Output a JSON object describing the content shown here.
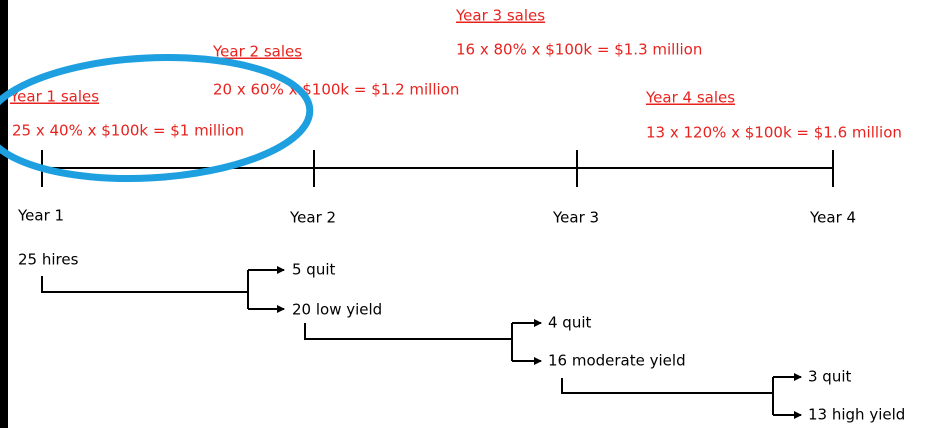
{
  "sales": [
    {
      "label": "Year 1 sales",
      "formula": "25 x 40% x $100k = $1 million"
    },
    {
      "label": "Year 2 sales",
      "formula": "20 x 60% x $100k = $1.2 million"
    },
    {
      "label": "Year 3 sales",
      "formula": "16 x 80% x $100k = $1.3 million"
    },
    {
      "label": "Year 4 sales",
      "formula": "13 x 120% x $100k = $1.6 million"
    }
  ],
  "timeline": [
    "Year 1",
    "Year 2",
    "Year 3",
    "Year 4"
  ],
  "flow": {
    "start": "25 hires",
    "steps": [
      {
        "quit": "5 quit",
        "remain": "20 low yield"
      },
      {
        "quit": "4 quit",
        "remain": "16 moderate yield"
      },
      {
        "quit": "3 quit",
        "remain": "13 high yield"
      }
    ]
  }
}
